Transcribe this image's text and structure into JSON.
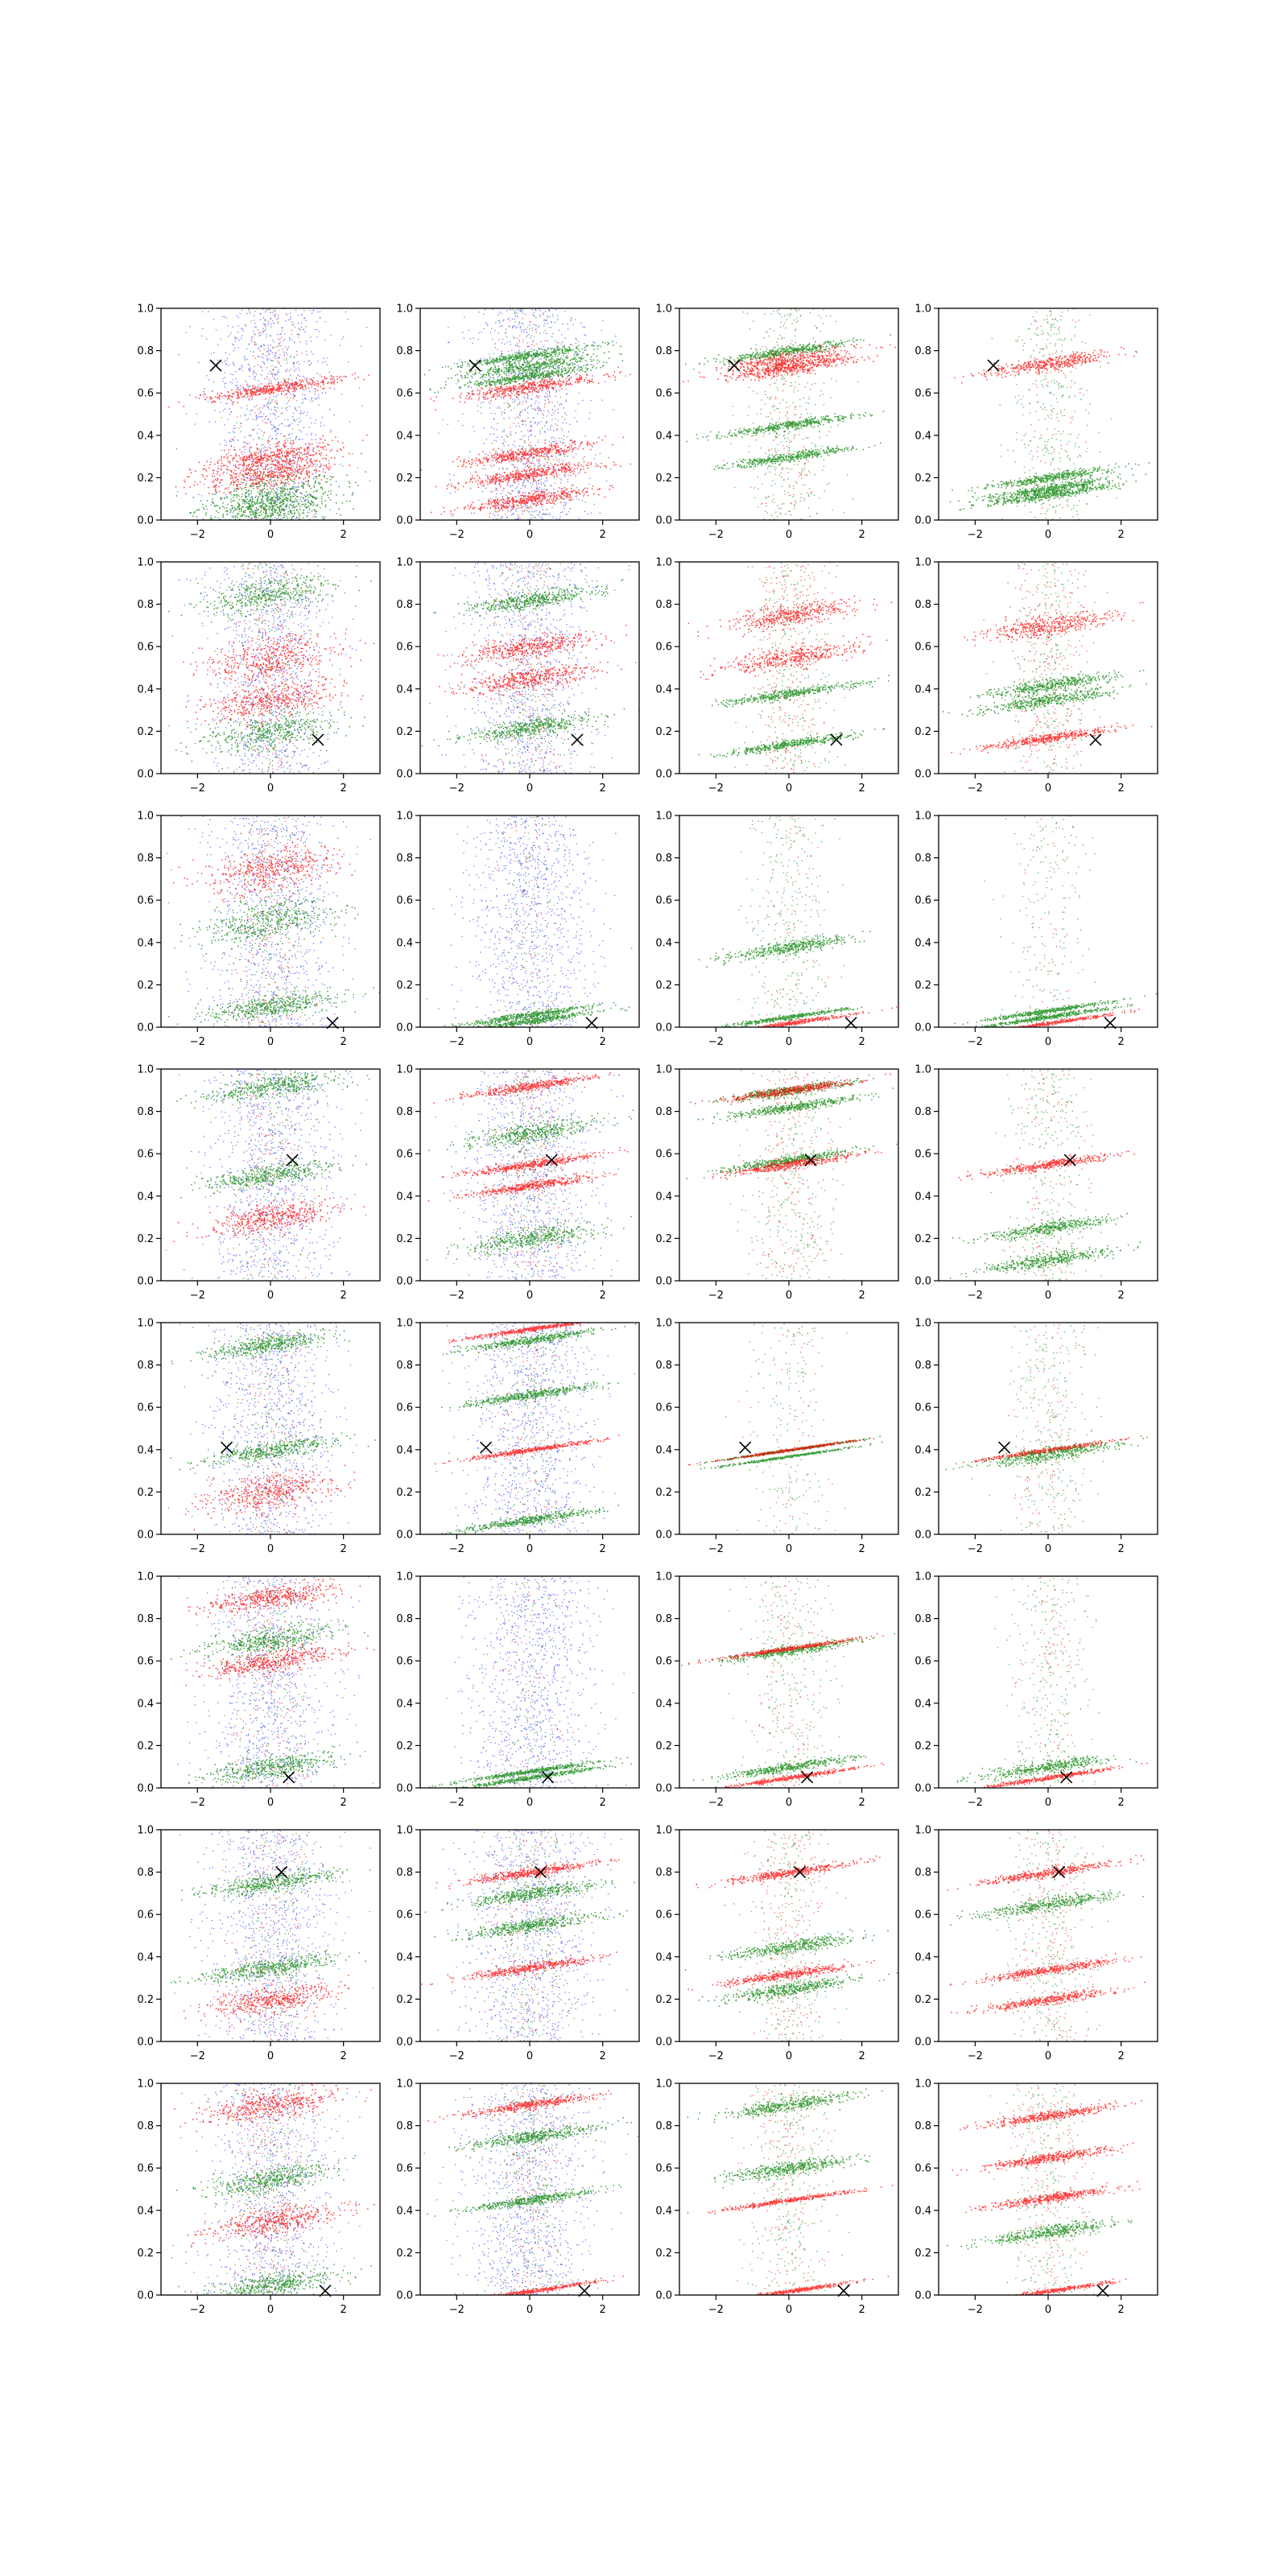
{
  "figure": {
    "rows": 8,
    "cols": 4
  },
  "colors": {
    "background": "#0000ff",
    "group_a": "#ff0000",
    "group_b": "#008000",
    "marker": "#000000",
    "axis": "#000000"
  },
  "shared_axes": {
    "xlim": [
      -3,
      3
    ],
    "ylim": [
      0,
      1
    ],
    "xticks": [
      -2,
      0,
      2
    ],
    "xtick_labels": [
      "−2",
      "0",
      "2"
    ],
    "yticks": [
      0.0,
      0.2,
      0.4,
      0.6,
      0.8,
      1.0
    ],
    "ytick_labels": [
      "0.0",
      "0.2",
      "0.4",
      "0.6",
      "0.8",
      "1.0"
    ]
  },
  "chart_data": [
    {
      "type": "scatter",
      "row": 0,
      "col": 0,
      "marker": {
        "x": -1.5,
        "y": 0.73
      },
      "density": {
        "background": 1.0,
        "group_a": 0.5,
        "group_b": 0.5
      },
      "bands": [
        {
          "g": "group_b",
          "y": 0.05,
          "s": 0.1
        },
        {
          "g": "group_b",
          "y": 0.11,
          "s": 0.1
        },
        {
          "g": "group_a",
          "y": 0.22,
          "s": 0.06
        },
        {
          "g": "group_a",
          "y": 0.3,
          "s": 0.06
        },
        {
          "g": "group_a",
          "y": 0.62,
          "s": 0.03
        }
      ]
    },
    {
      "type": "scatter",
      "row": 0,
      "col": 1,
      "marker": {
        "x": -1.5,
        "y": 0.73
      },
      "density": {
        "background": 1.0,
        "group_a": 0.5,
        "group_b": 0.6
      },
      "bands": [
        {
          "g": "group_b",
          "y": 0.73,
          "s": 0.03
        },
        {
          "g": "group_b",
          "y": 0.78,
          "s": 0.02
        },
        {
          "g": "group_b",
          "y": 0.68,
          "s": 0.02
        },
        {
          "g": "group_a",
          "y": 0.63,
          "s": 0.03
        },
        {
          "g": "group_a",
          "y": 0.32,
          "s": 0.03
        },
        {
          "g": "group_a",
          "y": 0.22,
          "s": 0.03
        },
        {
          "g": "group_a",
          "y": 0.1,
          "s": 0.03
        }
      ]
    },
    {
      "type": "scatter",
      "row": 0,
      "col": 2,
      "marker": {
        "x": -1.5,
        "y": 0.73
      },
      "density": {
        "background": 0,
        "group_a": 0.5,
        "group_b": 1.0
      },
      "bands": [
        {
          "g": "group_a",
          "y": 0.76,
          "s": 0.04
        },
        {
          "g": "group_a",
          "y": 0.72,
          "s": 0.03
        },
        {
          "g": "group_b",
          "y": 0.8,
          "s": 0.02
        },
        {
          "g": "group_b",
          "y": 0.3,
          "s": 0.02
        },
        {
          "g": "group_b",
          "y": 0.45,
          "s": 0.02
        }
      ]
    },
    {
      "type": "scatter",
      "row": 0,
      "col": 3,
      "marker": {
        "x": -1.5,
        "y": 0.73
      },
      "density": {
        "background": 0,
        "group_a": 0.3,
        "group_b": 1.0
      },
      "bands": [
        {
          "g": "group_a",
          "y": 0.74,
          "s": 0.03
        },
        {
          "g": "group_b",
          "y": 0.2,
          "s": 0.02
        },
        {
          "g": "group_b",
          "y": 0.15,
          "s": 0.02
        },
        {
          "g": "group_b",
          "y": 0.12,
          "s": 0.02
        }
      ]
    },
    {
      "type": "scatter",
      "row": 1,
      "col": 0,
      "marker": {
        "x": 1.3,
        "y": 0.16
      },
      "density": {
        "background": 1.0,
        "group_a": 0.5,
        "group_b": 0.5
      },
      "bands": [
        {
          "g": "group_b",
          "y": 0.2,
          "s": 0.08
        },
        {
          "g": "group_b",
          "y": 0.85,
          "s": 0.08
        },
        {
          "g": "group_a",
          "y": 0.55,
          "s": 0.1
        },
        {
          "g": "group_a",
          "y": 0.35,
          "s": 0.08
        }
      ]
    },
    {
      "type": "scatter",
      "row": 1,
      "col": 1,
      "marker": {
        "x": 1.3,
        "y": 0.16
      },
      "density": {
        "background": 1.0,
        "group_a": 0.6,
        "group_b": 0.6
      },
      "bands": [
        {
          "g": "group_b",
          "y": 0.82,
          "s": 0.04
        },
        {
          "g": "group_b",
          "y": 0.22,
          "s": 0.04
        },
        {
          "g": "group_a",
          "y": 0.6,
          "s": 0.05
        },
        {
          "g": "group_a",
          "y": 0.45,
          "s": 0.05
        }
      ]
    },
    {
      "type": "scatter",
      "row": 1,
      "col": 2,
      "marker": {
        "x": 1.3,
        "y": 0.16
      },
      "density": {
        "background": 0,
        "group_a": 0.8,
        "group_b": 0.8
      },
      "bands": [
        {
          "g": "group_b",
          "y": 0.14,
          "s": 0.02
        },
        {
          "g": "group_b",
          "y": 0.38,
          "s": 0.02
        },
        {
          "g": "group_a",
          "y": 0.75,
          "s": 0.05
        },
        {
          "g": "group_a",
          "y": 0.55,
          "s": 0.05
        }
      ]
    },
    {
      "type": "scatter",
      "row": 1,
      "col": 3,
      "marker": {
        "x": 1.3,
        "y": 0.16
      },
      "density": {
        "background": 0,
        "group_a": 0.8,
        "group_b": 0.8
      },
      "bands": [
        {
          "g": "group_a",
          "y": 0.17,
          "s": 0.02
        },
        {
          "g": "group_b",
          "y": 0.35,
          "s": 0.03
        },
        {
          "g": "group_b",
          "y": 0.42,
          "s": 0.03
        },
        {
          "g": "group_a",
          "y": 0.7,
          "s": 0.05
        }
      ]
    },
    {
      "type": "scatter",
      "row": 2,
      "col": 0,
      "marker": {
        "x": 1.7,
        "y": 0.02
      },
      "density": {
        "background": 1.0,
        "group_a": 0.6,
        "group_b": 0.6
      },
      "bands": [
        {
          "g": "group_b",
          "y": 0.5,
          "s": 0.1
        },
        {
          "g": "group_a",
          "y": 0.75,
          "s": 0.1
        },
        {
          "g": "group_b",
          "y": 0.1,
          "s": 0.05
        }
      ]
    },
    {
      "type": "scatter",
      "row": 2,
      "col": 1,
      "marker": {
        "x": 1.7,
        "y": 0.02
      },
      "density": {
        "background": 1.0,
        "group_a": 0.2,
        "group_b": 0.4
      },
      "bands": [
        {
          "g": "group_b",
          "y": 0.03,
          "s": 0.015
        },
        {
          "g": "group_b",
          "y": 0.06,
          "s": 0.015
        }
      ]
    },
    {
      "type": "scatter",
      "row": 2,
      "col": 2,
      "marker": {
        "x": 1.7,
        "y": 0.02
      },
      "density": {
        "background": 0,
        "group_a": 0.2,
        "group_b": 0.9
      },
      "bands": [
        {
          "g": "group_a",
          "y": 0.02,
          "s": 0.01
        },
        {
          "g": "group_b",
          "y": 0.05,
          "s": 0.01
        },
        {
          "g": "group_b",
          "y": 0.38,
          "s": 0.03
        }
      ]
    },
    {
      "type": "scatter",
      "row": 2,
      "col": 3,
      "marker": {
        "x": 1.7,
        "y": 0.02
      },
      "density": {
        "background": 0,
        "group_a": 0.2,
        "group_b": 0.5
      },
      "bands": [
        {
          "g": "group_b",
          "y": 0.05,
          "s": 0.01
        },
        {
          "g": "group_b",
          "y": 0.08,
          "s": 0.01
        },
        {
          "g": "group_a",
          "y": 0.02,
          "s": 0.008
        }
      ]
    },
    {
      "type": "scatter",
      "row": 3,
      "col": 0,
      "marker": {
        "x": 0.6,
        "y": 0.57
      },
      "density": {
        "background": 1.0,
        "group_a": 0.5,
        "group_b": 0.5
      },
      "bands": [
        {
          "g": "group_b",
          "y": 0.5,
          "s": 0.05
        },
        {
          "g": "group_b",
          "y": 0.92,
          "s": 0.05
        },
        {
          "g": "group_a",
          "y": 0.3,
          "s": 0.06
        }
      ]
    },
    {
      "type": "scatter",
      "row": 3,
      "col": 1,
      "marker": {
        "x": 0.6,
        "y": 0.57
      },
      "density": {
        "background": 1.0,
        "group_a": 0.6,
        "group_b": 0.6
      },
      "bands": [
        {
          "g": "group_a",
          "y": 0.92,
          "s": 0.02
        },
        {
          "g": "group_a",
          "y": 0.55,
          "s": 0.02
        },
        {
          "g": "group_a",
          "y": 0.45,
          "s": 0.02
        },
        {
          "g": "group_b",
          "y": 0.7,
          "s": 0.05
        },
        {
          "g": "group_b",
          "y": 0.2,
          "s": 0.05
        }
      ]
    },
    {
      "type": "scatter",
      "row": 3,
      "col": 2,
      "marker": {
        "x": 0.6,
        "y": 0.57
      },
      "density": {
        "background": 0,
        "group_a": 0.6,
        "group_b": 0.9
      },
      "bands": [
        {
          "g": "group_b",
          "y": 0.57,
          "s": 0.02
        },
        {
          "g": "group_b",
          "y": 0.82,
          "s": 0.02
        },
        {
          "g": "group_b",
          "y": 0.9,
          "s": 0.02
        },
        {
          "g": "group_a",
          "y": 0.9,
          "s": 0.02
        },
        {
          "g": "group_a",
          "y": 0.55,
          "s": 0.02
        }
      ]
    },
    {
      "type": "scatter",
      "row": 3,
      "col": 3,
      "marker": {
        "x": 0.6,
        "y": 0.57
      },
      "density": {
        "background": 0,
        "group_a": 0.4,
        "group_b": 0.8
      },
      "bands": [
        {
          "g": "group_a",
          "y": 0.55,
          "s": 0.02
        },
        {
          "g": "group_b",
          "y": 0.25,
          "s": 0.03
        },
        {
          "g": "group_b",
          "y": 0.1,
          "s": 0.03
        }
      ]
    },
    {
      "type": "scatter",
      "row": 4,
      "col": 0,
      "marker": {
        "x": -1.2,
        "y": 0.41
      },
      "density": {
        "background": 1.0,
        "group_a": 0.4,
        "group_b": 0.5
      },
      "bands": [
        {
          "g": "group_b",
          "y": 0.4,
          "s": 0.04
        },
        {
          "g": "group_b",
          "y": 0.9,
          "s": 0.04
        },
        {
          "g": "group_a",
          "y": 0.2,
          "s": 0.08
        }
      ]
    },
    {
      "type": "scatter",
      "row": 4,
      "col": 1,
      "marker": {
        "x": -1.2,
        "y": 0.41
      },
      "density": {
        "background": 1.0,
        "group_a": 0.4,
        "group_b": 0.5
      },
      "bands": [
        {
          "g": "group_a",
          "y": 0.97,
          "s": 0.01
        },
        {
          "g": "group_a",
          "y": 0.4,
          "s": 0.01
        },
        {
          "g": "group_b",
          "y": 0.92,
          "s": 0.02
        },
        {
          "g": "group_b",
          "y": 0.07,
          "s": 0.02
        },
        {
          "g": "group_b",
          "y": 0.66,
          "s": 0.02
        }
      ]
    },
    {
      "type": "scatter",
      "row": 4,
      "col": 2,
      "marker": {
        "x": -1.2,
        "y": 0.41
      },
      "density": {
        "background": 0,
        "group_a": 0.2,
        "group_b": 0.5
      },
      "bands": [
        {
          "g": "group_b",
          "y": 0.4,
          "s": 0.005
        },
        {
          "g": "group_b",
          "y": 0.37,
          "s": 0.005
        },
        {
          "g": "group_a",
          "y": 0.4,
          "s": 0.005
        }
      ]
    },
    {
      "type": "scatter",
      "row": 4,
      "col": 3,
      "marker": {
        "x": -1.2,
        "y": 0.41
      },
      "density": {
        "background": 0,
        "group_a": 0.4,
        "group_b": 0.8
      },
      "bands": [
        {
          "g": "group_a",
          "y": 0.4,
          "s": 0.01
        },
        {
          "g": "group_b",
          "y": 0.38,
          "s": 0.03
        }
      ]
    },
    {
      "type": "scatter",
      "row": 5,
      "col": 0,
      "marker": {
        "x": 0.5,
        "y": 0.05
      },
      "density": {
        "background": 1.0,
        "group_a": 0.5,
        "group_b": 0.5
      },
      "bands": [
        {
          "g": "group_b",
          "y": 0.1,
          "s": 0.05
        },
        {
          "g": "group_b",
          "y": 0.7,
          "s": 0.05
        },
        {
          "g": "group_a",
          "y": 0.9,
          "s": 0.05
        },
        {
          "g": "group_a",
          "y": 0.6,
          "s": 0.05
        }
      ]
    },
    {
      "type": "scatter",
      "row": 5,
      "col": 1,
      "marker": {
        "x": 0.5,
        "y": 0.05
      },
      "density": {
        "background": 1.0,
        "group_a": 0.2,
        "group_b": 0.4
      },
      "bands": [
        {
          "g": "group_b",
          "y": 0.05,
          "s": 0.01
        },
        {
          "g": "group_b",
          "y": 0.08,
          "s": 0.01
        }
      ]
    },
    {
      "type": "scatter",
      "row": 5,
      "col": 2,
      "marker": {
        "x": 0.5,
        "y": 0.05
      },
      "density": {
        "background": 0,
        "group_a": 0.4,
        "group_b": 0.8
      },
      "bands": [
        {
          "g": "group_b",
          "y": 0.65,
          "s": 0.02
        },
        {
          "g": "group_b",
          "y": 0.1,
          "s": 0.02
        },
        {
          "g": "group_a",
          "y": 0.05,
          "s": 0.01
        },
        {
          "g": "group_a",
          "y": 0.66,
          "s": 0.01
        }
      ]
    },
    {
      "type": "scatter",
      "row": 5,
      "col": 3,
      "marker": {
        "x": 0.5,
        "y": 0.05
      },
      "density": {
        "background": 0,
        "group_a": 0.3,
        "group_b": 0.8
      },
      "bands": [
        {
          "g": "group_a",
          "y": 0.05,
          "s": 0.01
        },
        {
          "g": "group_b",
          "y": 0.1,
          "s": 0.03
        }
      ]
    },
    {
      "type": "scatter",
      "row": 6,
      "col": 0,
      "marker": {
        "x": 0.3,
        "y": 0.8
      },
      "density": {
        "background": 1.0,
        "group_a": 0.5,
        "group_b": 0.6
      },
      "bands": [
        {
          "g": "group_b",
          "y": 0.35,
          "s": 0.04
        },
        {
          "g": "group_b",
          "y": 0.75,
          "s": 0.04
        },
        {
          "g": "group_a",
          "y": 0.2,
          "s": 0.06
        }
      ]
    },
    {
      "type": "scatter",
      "row": 6,
      "col": 1,
      "marker": {
        "x": 0.3,
        "y": 0.8
      },
      "density": {
        "background": 1.0,
        "group_a": 0.5,
        "group_b": 0.7
      },
      "bands": [
        {
          "g": "group_a",
          "y": 0.8,
          "s": 0.02
        },
        {
          "g": "group_a",
          "y": 0.35,
          "s": 0.02
        },
        {
          "g": "group_b",
          "y": 0.55,
          "s": 0.03
        },
        {
          "g": "group_b",
          "y": 0.7,
          "s": 0.03
        }
      ]
    },
    {
      "type": "scatter",
      "row": 6,
      "col": 2,
      "marker": {
        "x": 0.3,
        "y": 0.8
      },
      "density": {
        "background": 0,
        "group_a": 0.6,
        "group_b": 0.8
      },
      "bands": [
        {
          "g": "group_a",
          "y": 0.8,
          "s": 0.02
        },
        {
          "g": "group_a",
          "y": 0.32,
          "s": 0.02
        },
        {
          "g": "group_b",
          "y": 0.25,
          "s": 0.03
        },
        {
          "g": "group_b",
          "y": 0.45,
          "s": 0.03
        }
      ]
    },
    {
      "type": "scatter",
      "row": 6,
      "col": 3,
      "marker": {
        "x": 0.3,
        "y": 0.8
      },
      "density": {
        "background": 0,
        "group_a": 0.6,
        "group_b": 0.8
      },
      "bands": [
        {
          "g": "group_a",
          "y": 0.8,
          "s": 0.02
        },
        {
          "g": "group_a",
          "y": 0.34,
          "s": 0.02
        },
        {
          "g": "group_a",
          "y": 0.2,
          "s": 0.02
        },
        {
          "g": "group_b",
          "y": 0.65,
          "s": 0.03
        }
      ]
    },
    {
      "type": "scatter",
      "row": 7,
      "col": 0,
      "marker": {
        "x": 1.5,
        "y": 0.02
      },
      "density": {
        "background": 1.0,
        "group_a": 0.6,
        "group_b": 0.6
      },
      "bands": [
        {
          "g": "group_b",
          "y": 0.05,
          "s": 0.05
        },
        {
          "g": "group_b",
          "y": 0.55,
          "s": 0.06
        },
        {
          "g": "group_a",
          "y": 0.9,
          "s": 0.06
        },
        {
          "g": "group_a",
          "y": 0.35,
          "s": 0.06
        }
      ]
    },
    {
      "type": "scatter",
      "row": 7,
      "col": 1,
      "marker": {
        "x": 1.5,
        "y": 0.02
      },
      "density": {
        "background": 1.0,
        "group_a": 0.5,
        "group_b": 0.8
      },
      "bands": [
        {
          "g": "group_b",
          "y": 0.45,
          "s": 0.02
        },
        {
          "g": "group_b",
          "y": 0.75,
          "s": 0.03
        },
        {
          "g": "group_a",
          "y": 0.02,
          "s": 0.01
        },
        {
          "g": "group_a",
          "y": 0.9,
          "s": 0.02
        }
      ]
    },
    {
      "type": "scatter",
      "row": 7,
      "col": 2,
      "marker": {
        "x": 1.5,
        "y": 0.02
      },
      "density": {
        "background": 0,
        "group_a": 0.5,
        "group_b": 0.9
      },
      "bands": [
        {
          "g": "group_a",
          "y": 0.45,
          "s": 0.01
        },
        {
          "g": "group_a",
          "y": 0.02,
          "s": 0.01
        },
        {
          "g": "group_b",
          "y": 0.9,
          "s": 0.03
        },
        {
          "g": "group_b",
          "y": 0.6,
          "s": 0.03
        }
      ]
    },
    {
      "type": "scatter",
      "row": 7,
      "col": 3,
      "marker": {
        "x": 1.5,
        "y": 0.02
      },
      "density": {
        "background": 0,
        "group_a": 0.6,
        "group_b": 0.8
      },
      "bands": [
        {
          "g": "group_a",
          "y": 0.02,
          "s": 0.01
        },
        {
          "g": "group_a",
          "y": 0.46,
          "s": 0.02
        },
        {
          "g": "group_a",
          "y": 0.65,
          "s": 0.02
        },
        {
          "g": "group_a",
          "y": 0.85,
          "s": 0.02
        },
        {
          "g": "group_b",
          "y": 0.3,
          "s": 0.03
        }
      ]
    }
  ]
}
